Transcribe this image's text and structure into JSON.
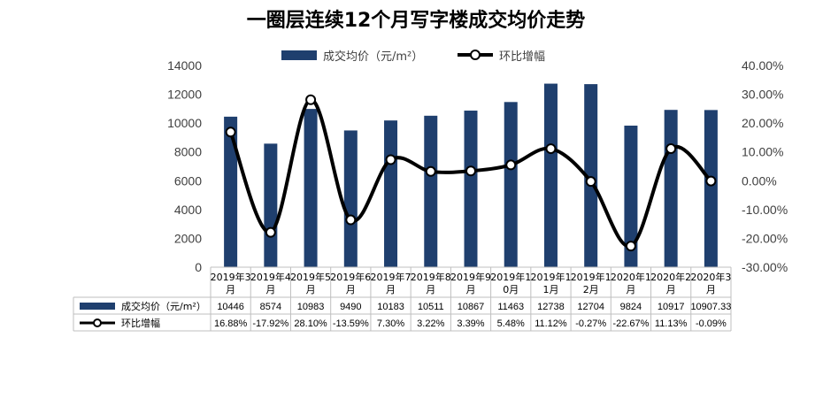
{
  "chart_data": {
    "type": "bar",
    "title": "一圈层连续12个月写字楼成交均价走势",
    "categories": [
      [
        "2019年3",
        "月"
      ],
      [
        "2019年4",
        "月"
      ],
      [
        "2019年5",
        "月"
      ],
      [
        "2019年6",
        "月"
      ],
      [
        "2019年7",
        "月"
      ],
      [
        "2019年8",
        "月"
      ],
      [
        "2019年9",
        "月"
      ],
      [
        "2019年1",
        "0月"
      ],
      [
        "2019年1",
        "1月"
      ],
      [
        "2019年1",
        "2月"
      ],
      [
        "2020年1",
        "月"
      ],
      [
        "2020年2",
        "月"
      ],
      [
        "2020年3",
        "月"
      ]
    ],
    "series": [
      {
        "name": "成交均价（元/m²）",
        "type": "bar",
        "axis": "left",
        "color": "#1F3F6E",
        "values": [
          10446,
          8574,
          10983,
          9490,
          10183,
          10511,
          10867,
          11463,
          12738,
          12704,
          9824,
          10917,
          10907.33
        ],
        "labels": [
          "10446",
          "8574",
          "10983",
          "9490",
          "10183",
          "10511",
          "10867",
          "11463",
          "12738",
          "12704",
          "9824",
          "10917",
          "10907.33"
        ]
      },
      {
        "name": "环比增幅",
        "type": "line",
        "axis": "right",
        "color": "#000000",
        "values": [
          16.88,
          -17.92,
          28.1,
          -13.59,
          7.3,
          3.22,
          3.39,
          5.48,
          11.12,
          -0.27,
          -22.67,
          11.13,
          -0.09
        ],
        "labels": [
          "16.88%",
          "-17.92%",
          "28.10%",
          "-13.59%",
          "7.30%",
          "3.22%",
          "3.39%",
          "5.48%",
          "11.12%",
          "-0.27%",
          "-22.67%",
          "11.13%",
          "-0.09%"
        ]
      }
    ],
    "y_left": {
      "min": 0,
      "max": 14000,
      "ticks": [
        "0",
        "2000",
        "4000",
        "6000",
        "8000",
        "10000",
        "12000",
        "14000"
      ]
    },
    "y_right": {
      "min": -30,
      "max": 40,
      "ticks": [
        "-30.00%",
        "-20.00%",
        "-10.00%",
        "0.00%",
        "10.00%",
        "20.00%",
        "30.00%",
        "40.00%"
      ]
    },
    "legend": "top",
    "data_table": true,
    "grid": false
  }
}
